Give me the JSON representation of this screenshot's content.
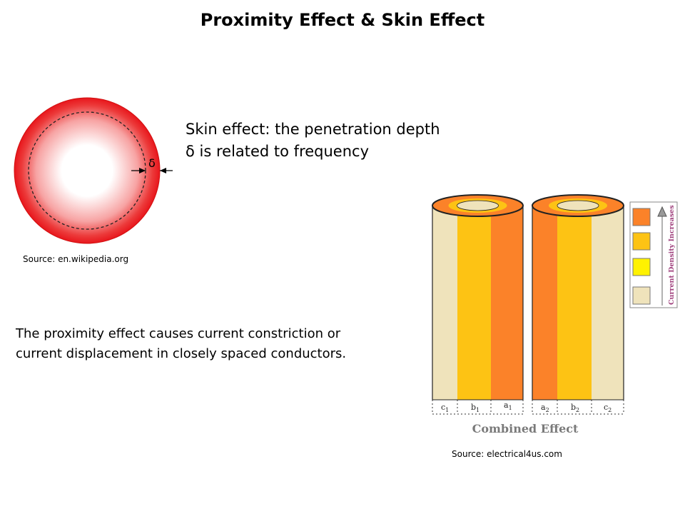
{
  "title": "Proximity Effect & Skin Effect",
  "skin_effect": {
    "line1": "Skin effect: the penetration depth",
    "line2": "δ is related to frequency",
    "delta_symbol": "δ",
    "source": "Source: en.wikipedia.org"
  },
  "proximity_effect": {
    "line1": "The proximity effect causes current constriction or",
    "line2": "current displacement in closely spaced conductors."
  },
  "combined_figure": {
    "caption": "Combined Effect",
    "legend_label": "Current Density Increases",
    "source": "Source: electrical4us.com",
    "conductor1_labels": {
      "c": "c",
      "c_sub": "1",
      "b": "b",
      "b_sub": "1",
      "a": "a",
      "a_sub": "1"
    },
    "conductor2_labels": {
      "a": "a",
      "a_sub": "2",
      "b": "b",
      "b_sub": "2",
      "c": "c",
      "c_sub": "2"
    },
    "colors": {
      "highest": "#fb8229",
      "high": "#fdc314",
      "medium": "#fff200",
      "low": "#efe3bb",
      "skin_red": "#e8161c"
    }
  }
}
